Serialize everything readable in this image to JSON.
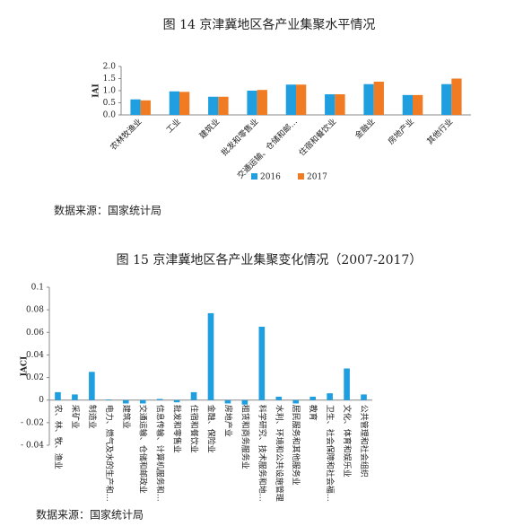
{
  "chart_data": [
    {
      "type": "bar",
      "title": "图 14 京津冀地区各产业集聚水平情况",
      "y_label": "IAI",
      "categories": [
        "农林牧渔业",
        "工业",
        "建筑业",
        "批发和零售业",
        "交通运输、仓储和邮…",
        "住宿和餐饮业",
        "金融业",
        "房地产业",
        "其他行业"
      ],
      "series": [
        {
          "name": "2016",
          "color": "#1f9fe0",
          "values": [
            0.64,
            0.97,
            0.75,
            1.0,
            1.25,
            0.85,
            1.27,
            0.82,
            1.27
          ]
        },
        {
          "name": "2017",
          "color": "#f07b22",
          "values": [
            0.6,
            0.95,
            0.75,
            1.03,
            1.25,
            0.85,
            1.37,
            0.82,
            1.5
          ]
        }
      ],
      "ylim": [
        0,
        2
      ],
      "yticks": [
        {
          "value": 0,
          "label": "0.0"
        },
        0.5,
        {
          "value": 1,
          "label": "1.0"
        },
        1.5,
        {
          "value": 2,
          "label": "2.0"
        }
      ],
      "legend": "bottom"
    },
    {
      "type": "bar",
      "title": "图 15 京津冀地区各产业集聚变化情况（2007-2017）",
      "y_label": "IACI",
      "categories": [
        "农、林、牧、渔业",
        "采矿业",
        "制造业",
        "电力、燃气及水的生产和…",
        "建筑业",
        "交通运输、仓储和邮政业",
        "信息传输、计算机服务和…",
        "批发和零售业",
        "住宿和餐饮业",
        "金融、保险业",
        "房地产业",
        "租赁和商务服务业",
        "科学研究、技术服务和地…",
        "水利、环境和公共设施管理",
        "居民服务和其他服务业",
        "教育",
        "卫生、社会保障和社会福…",
        "文化、体育和娱乐业",
        "公共管理和社会组织"
      ],
      "values": [
        0.007,
        0.005,
        0.025,
        0.0005,
        -0.003,
        -0.003,
        0.001,
        -0.002,
        0.007,
        0.077,
        -0.003,
        -0.004,
        0.065,
        0.003,
        -0.003,
        0.003,
        0.006,
        0.028,
        0.005
      ],
      "color": "#1f9fe0",
      "ylim": [
        -0.04,
        0.1
      ],
      "yticks": [
        {
          "value": -0.04,
          "label": "- 0.04"
        },
        {
          "value": -0.02,
          "label": "- 0.02"
        },
        0,
        0.02,
        0.04,
        0.06,
        0.08,
        0.1
      ]
    }
  ],
  "sources": [
    "数据来源：国家统计局",
    "数据来源：国家统计局"
  ]
}
